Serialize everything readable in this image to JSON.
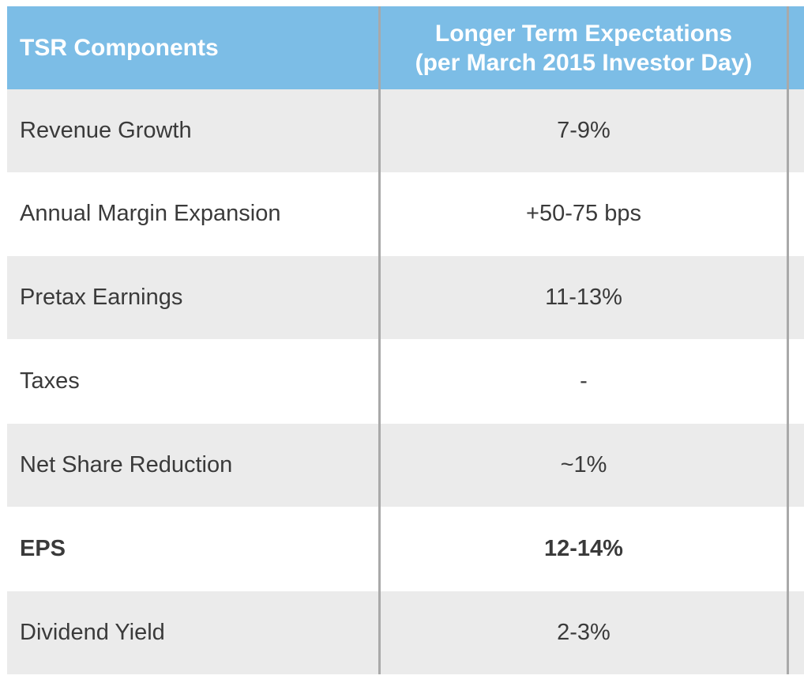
{
  "header": {
    "col1": "TSR Components",
    "col2_line1": "Longer Term Expectations",
    "col2_line2": "(per March 2015 Investor Day)"
  },
  "rows": [
    {
      "component": "Revenue Growth",
      "expectation": "7-9%"
    },
    {
      "component": "Annual Margin Expansion",
      "expectation": "+50-75 bps"
    },
    {
      "component": "Pretax Earnings",
      "expectation": "11-13%"
    },
    {
      "component": "Taxes",
      "expectation": "-"
    },
    {
      "component": "Net Share Reduction",
      "expectation": "~1%"
    },
    {
      "component": "EPS",
      "expectation": "12-14%"
    },
    {
      "component": "Dividend Yield",
      "expectation": "2-3%"
    }
  ],
  "colors": {
    "header_bg": "#7cbde6",
    "header_text": "#ffffff",
    "shaded_row": "#ebebeb",
    "divider": "#a9a9a9"
  }
}
